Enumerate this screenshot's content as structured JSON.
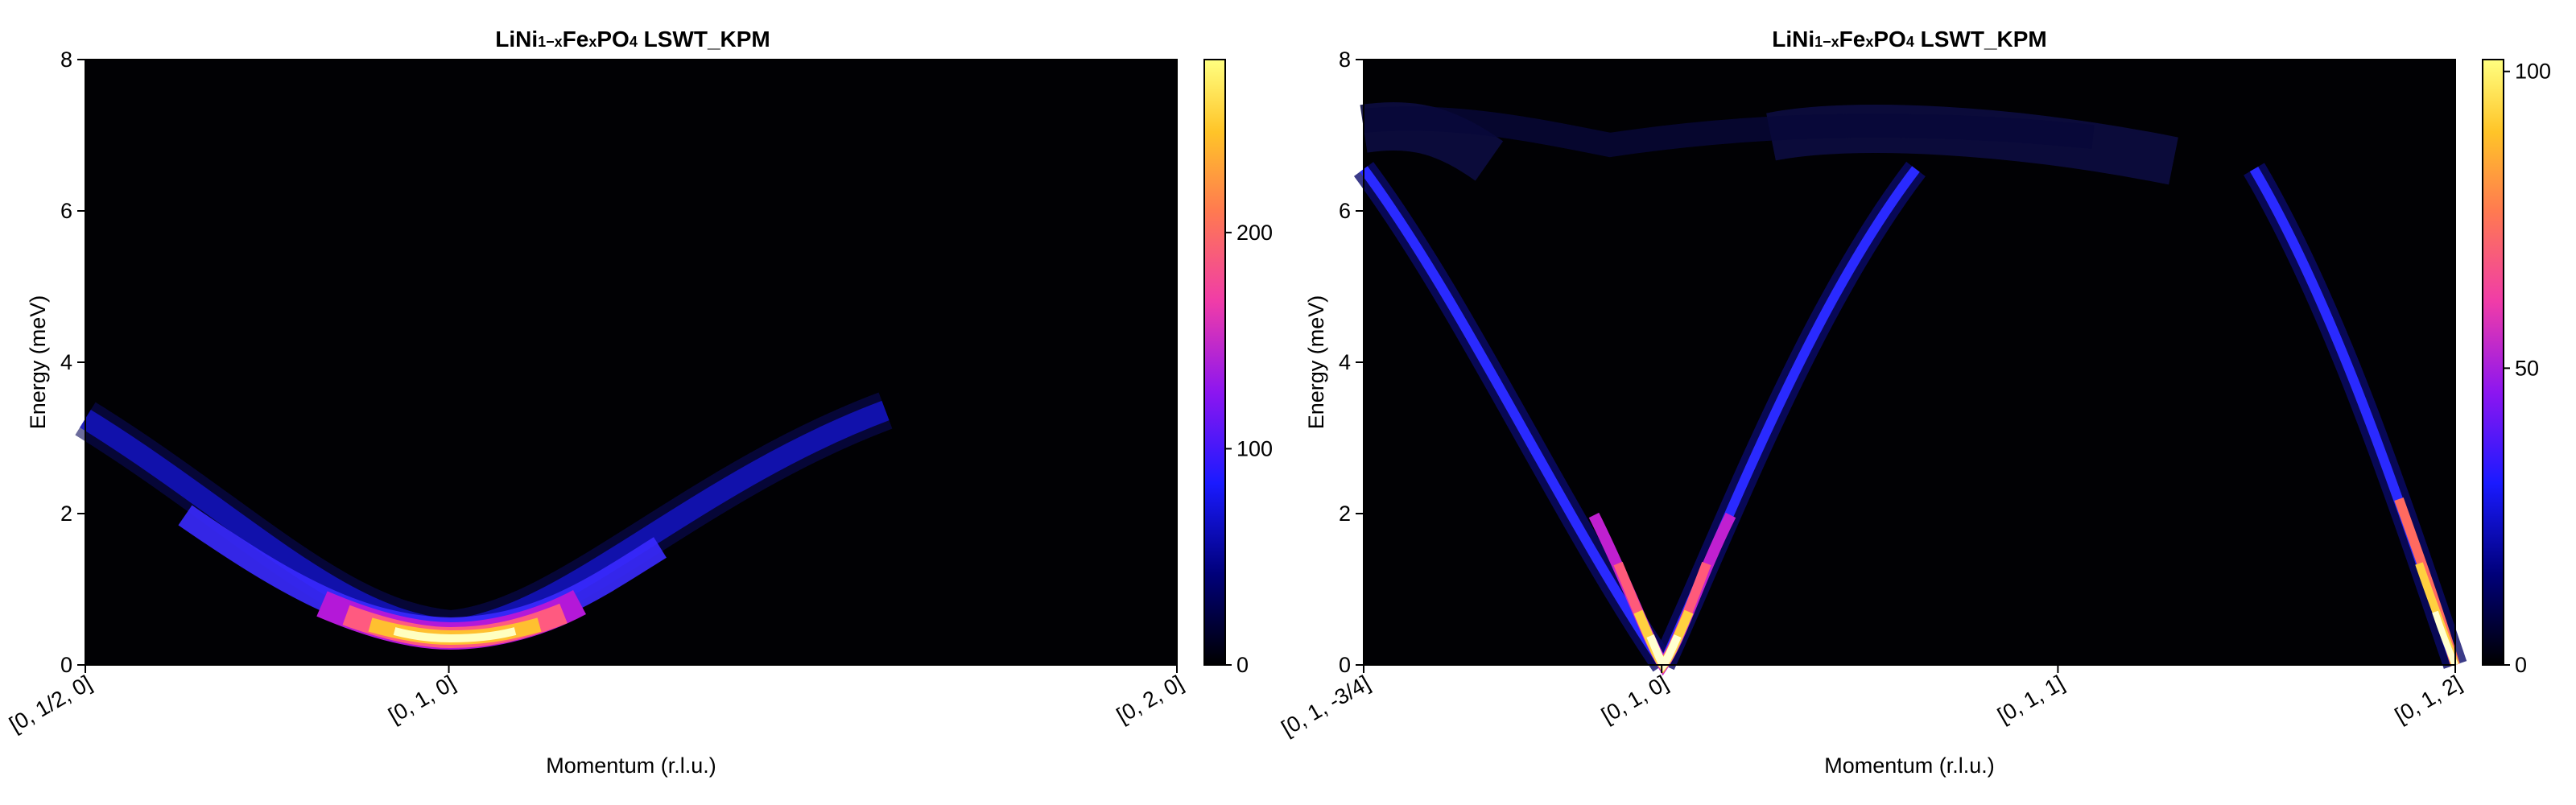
{
  "chart_data": [
    {
      "type": "heatmap",
      "title_parts": {
        "a": "LiNi",
        "b": "1−x",
        "c": "Fe",
        "d": "x",
        "e": "PO",
        "f": "4",
        "g": " LSWT_KPM"
      },
      "xlabel": "Momentum (r.l.u.)",
      "ylabel": "Energy (meV)",
      "x_ticks": [
        {
          "label": "[0, 1/2, 0]",
          "pos": 0.0
        },
        {
          "label": "[0, 1, 0]",
          "pos": 0.333
        },
        {
          "label": "[0, 2, 0]",
          "pos": 1.0
        }
      ],
      "ylim": [
        0,
        8
      ],
      "y_ticks": [
        "0",
        "2",
        "4",
        "6",
        "8"
      ],
      "colorbar": {
        "range": [
          0,
          280
        ],
        "ticks": [
          "0",
          "100",
          "200"
        ],
        "tick_values": [
          0,
          100,
          200
        ],
        "colormap": "gnuplot2"
      },
      "dispersion": "cosine band with minimum near 0.35 meV at [0,1,0], rising to ~3.3 meV at both ends"
    },
    {
      "type": "heatmap",
      "title_parts": {
        "a": "LiNi",
        "b": "1−x",
        "c": "Fe",
        "d": "x",
        "e": "PO",
        "f": "4",
        "g": " LSWT_KPM"
      },
      "xlabel": "Momentum (r.l.u.)",
      "ylabel": "Energy (meV)",
      "x_ticks": [
        {
          "label": "[0, 1, -3/4]",
          "pos": 0.0
        },
        {
          "label": "[0, 1, 0]",
          "pos": 0.273
        },
        {
          "label": "[0, 1, 1]",
          "pos": 0.636
        },
        {
          "label": "[0, 1, 2]",
          "pos": 1.0
        }
      ],
      "ylim": [
        0,
        8
      ],
      "y_ticks": [
        "0",
        "2",
        "4",
        "6",
        "8"
      ],
      "colorbar": {
        "range": [
          0,
          102
        ],
        "ticks": [
          "0",
          "50",
          "100"
        ],
        "tick_values": [
          0,
          50,
          100
        ],
        "colormap": "gnuplot2"
      },
      "dispersion": "V-shaped bands from 0 meV at [0,1,0] and [0,1,2], rising to ~7 meV flat band"
    }
  ]
}
